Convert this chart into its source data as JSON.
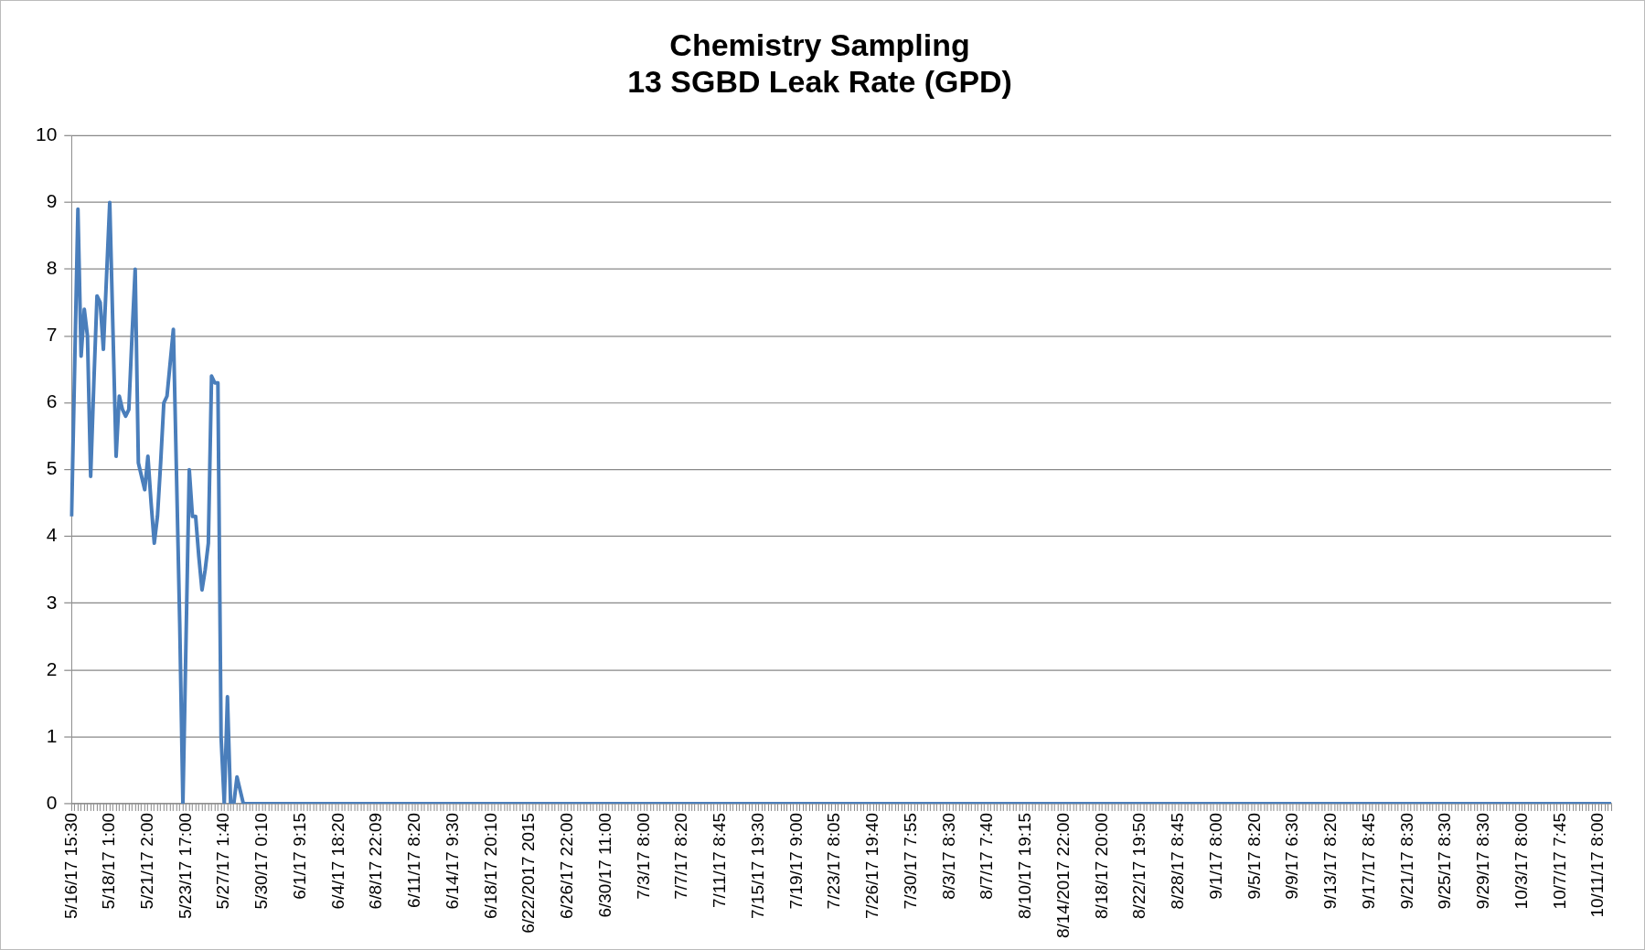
{
  "chart_data": {
    "type": "line",
    "title": "Chemistry Sampling\n13 SGBD Leak Rate (GPD)",
    "categories": [
      "5/16/17 15:30",
      null,
      null,
      null,
      null,
      null,
      null,
      null,
      null,
      null,
      null,
      null,
      "5/18/17 1:00",
      null,
      null,
      null,
      null,
      null,
      null,
      null,
      null,
      null,
      null,
      null,
      "5/21/17 2:00",
      null,
      null,
      null,
      null,
      null,
      null,
      null,
      null,
      null,
      null,
      null,
      "5/23/17 17:00",
      null,
      null,
      null,
      null,
      null,
      null,
      null,
      null,
      null,
      null,
      null,
      "5/27/17 1:40",
      null,
      null,
      null,
      null,
      null,
      null,
      null,
      null,
      null,
      null,
      null,
      "5/30/17 0:10",
      null,
      null,
      null,
      null,
      null,
      null,
      null,
      null,
      null,
      null,
      null,
      "6/1/17 9:15",
      null,
      null,
      null,
      null,
      null,
      null,
      null,
      null,
      null,
      null,
      null,
      "6/4/17 18:20",
      null,
      null,
      null,
      null,
      null,
      null,
      null,
      null,
      null,
      null,
      null,
      "6/8/17 22:09",
      null,
      null,
      null,
      null,
      null,
      null,
      null,
      null,
      null,
      null,
      null,
      "6/11/17 8:20",
      null,
      null,
      null,
      null,
      null,
      null,
      null,
      null,
      null,
      null,
      null,
      "6/14/17 9:30",
      null,
      null,
      null,
      null,
      null,
      null,
      null,
      null,
      null,
      null,
      null,
      "6/18/17 20:10",
      null,
      null,
      null,
      null,
      null,
      null,
      null,
      null,
      null,
      null,
      null,
      "6/22/2017 2015",
      null,
      null,
      null,
      null,
      null,
      null,
      null,
      null,
      null,
      null,
      null,
      "6/26/17 22:00",
      null,
      null,
      null,
      null,
      null,
      null,
      null,
      null,
      null,
      null,
      null,
      "6/30/17 11:00",
      null,
      null,
      null,
      null,
      null,
      null,
      null,
      null,
      null,
      null,
      null,
      "7/3/17 8:00",
      null,
      null,
      null,
      null,
      null,
      null,
      null,
      null,
      null,
      null,
      null,
      "7/7/17 8:20",
      null,
      null,
      null,
      null,
      null,
      null,
      null,
      null,
      null,
      null,
      null,
      "7/11/17 8:45",
      null,
      null,
      null,
      null,
      null,
      null,
      null,
      null,
      null,
      null,
      null,
      "7/15/17 19:30",
      null,
      null,
      null,
      null,
      null,
      null,
      null,
      null,
      null,
      null,
      null,
      "7/19/17 9:00",
      null,
      null,
      null,
      null,
      null,
      null,
      null,
      null,
      null,
      null,
      null,
      "7/23/17 8:05",
      null,
      null,
      null,
      null,
      null,
      null,
      null,
      null,
      null,
      null,
      null,
      "7/26/17 19:40",
      null,
      null,
      null,
      null,
      null,
      null,
      null,
      null,
      null,
      null,
      null,
      "7/30/17 7:55",
      null,
      null,
      null,
      null,
      null,
      null,
      null,
      null,
      null,
      null,
      null,
      "8/3/17 8:30",
      null,
      null,
      null,
      null,
      null,
      null,
      null,
      null,
      null,
      null,
      null,
      "8/7/17 7:40",
      null,
      null,
      null,
      null,
      null,
      null,
      null,
      null,
      null,
      null,
      null,
      "8/10/17 19:15",
      null,
      null,
      null,
      null,
      null,
      null,
      null,
      null,
      null,
      null,
      null,
      "8/14/2017 22:00",
      null,
      null,
      null,
      null,
      null,
      null,
      null,
      null,
      null,
      null,
      null,
      "8/18/17 20:00",
      null,
      null,
      null,
      null,
      null,
      null,
      null,
      null,
      null,
      null,
      null,
      "8/22/17 19:50",
      null,
      null,
      null,
      null,
      null,
      null,
      null,
      null,
      null,
      null,
      null,
      "8/28/17 8:45",
      null,
      null,
      null,
      null,
      null,
      null,
      null,
      null,
      null,
      null,
      null,
      "9/1/17 8:00",
      null,
      null,
      null,
      null,
      null,
      null,
      null,
      null,
      null,
      null,
      null,
      "9/5/17 8:20",
      null,
      null,
      null,
      null,
      null,
      null,
      null,
      null,
      null,
      null,
      null,
      "9/9/17 6:30",
      null,
      null,
      null,
      null,
      null,
      null,
      null,
      null,
      null,
      null,
      null,
      "9/13/17 8:20",
      null,
      null,
      null,
      null,
      null,
      null,
      null,
      null,
      null,
      null,
      null,
      "9/17/17 8:45",
      null,
      null,
      null,
      null,
      null,
      null,
      null,
      null,
      null,
      null,
      null,
      "9/21/17 8:30",
      null,
      null,
      null,
      null,
      null,
      null,
      null,
      null,
      null,
      null,
      null,
      "9/25/17 8:30",
      null,
      null,
      null,
      null,
      null,
      null,
      null,
      null,
      null,
      null,
      null,
      "9/29/17 8:30",
      null,
      null,
      null,
      null,
      null,
      null,
      null,
      null,
      null,
      null,
      null,
      "10/3/17 8:00",
      null,
      null,
      null,
      null,
      null,
      null,
      null,
      null,
      null,
      null,
      null,
      "10/7/17 7:45",
      null,
      null,
      null,
      null,
      null,
      null,
      null,
      null,
      null,
      null,
      null,
      "10/11/17 8:00",
      null,
      null,
      null,
      null
    ],
    "series": [
      {
        "color": "#4a7ebb",
        "values": [
          4.3,
          6.6,
          8.9,
          6.7,
          7.4,
          7.0,
          4.9,
          6.3,
          7.6,
          7.5,
          6.8,
          7.9,
          9.0,
          7.1,
          5.2,
          6.1,
          5.9,
          5.8,
          5.9,
          7.0,
          8.0,
          5.1,
          4.9,
          4.7,
          5.2,
          4.5,
          3.9,
          4.3,
          5.1,
          6.0,
          6.1,
          6.6,
          7.1,
          4.9,
          2.7,
          0,
          2.5,
          5.0,
          4.3,
          4.3,
          3.7,
          3.2,
          3.5,
          3.9,
          6.4,
          6.3,
          6.3,
          1.0,
          0,
          1.6,
          0,
          0,
          0.4,
          0.2,
          0,
          0,
          0,
          0,
          0,
          0,
          0,
          0,
          0,
          0,
          0,
          0,
          0,
          0,
          0,
          0,
          0,
          0,
          0,
          0,
          0,
          0,
          0,
          0,
          0,
          0,
          0,
          0,
          0,
          0,
          0,
          0,
          0,
          0,
          0,
          0,
          0,
          0,
          0,
          0,
          0,
          0,
          0,
          0,
          0,
          0,
          0,
          0,
          0,
          0,
          0,
          0,
          0,
          0,
          0,
          0,
          0,
          0,
          0,
          0,
          0,
          0,
          0,
          0,
          0,
          0,
          0,
          0,
          0,
          0,
          0,
          0,
          0,
          0,
          0,
          0,
          0,
          0,
          0,
          0,
          0,
          0,
          0,
          0,
          0,
          0,
          0,
          0,
          0,
          0,
          0,
          0,
          0,
          0,
          0,
          0,
          0,
          0,
          0,
          0,
          0,
          0,
          0,
          0,
          0,
          0,
          0,
          0,
          0,
          0,
          0,
          0,
          0,
          0,
          0,
          0,
          0,
          0,
          0,
          0,
          0,
          0,
          0,
          0,
          0,
          0,
          0,
          0,
          0,
          0,
          0,
          0,
          0,
          0,
          0,
          0,
          0,
          0,
          0,
          0,
          0,
          0,
          0,
          0,
          0,
          0,
          0,
          0,
          0,
          0,
          0,
          0,
          0,
          0,
          0,
          0,
          0,
          0,
          0,
          0,
          0,
          0,
          0,
          0,
          0,
          0,
          0,
          0,
          0,
          0,
          0,
          0,
          0,
          0,
          0,
          0,
          0,
          0,
          0,
          0,
          0,
          0,
          0,
          0,
          0,
          0,
          0,
          0,
          0,
          0,
          0,
          0,
          0,
          0,
          0,
          0,
          0,
          0,
          0,
          0,
          0,
          0,
          0,
          0,
          0,
          0,
          0,
          0,
          0,
          0,
          0,
          0,
          0,
          0,
          0,
          0,
          0,
          0,
          0,
          0,
          0,
          0,
          0,
          0,
          0,
          0,
          0,
          0,
          0,
          0,
          0,
          0,
          0,
          0,
          0,
          0,
          0,
          0,
          0,
          0,
          0,
          0,
          0,
          0,
          0,
          0,
          0,
          0,
          0,
          0,
          0,
          0,
          0,
          0,
          0,
          0,
          0,
          0,
          0,
          0,
          0,
          0,
          0,
          0,
          0,
          0,
          0,
          0,
          0,
          0,
          0,
          0,
          0,
          0,
          0,
          0,
          0,
          0,
          0,
          0,
          0,
          0,
          0,
          0,
          0,
          0,
          0,
          0,
          0,
          0,
          0,
          0,
          0,
          0,
          0,
          0,
          0,
          0,
          0,
          0,
          0,
          0,
          0,
          0,
          0,
          0,
          0,
          0,
          0,
          0,
          0,
          0,
          0,
          0,
          0,
          0,
          0,
          0,
          0,
          0,
          0,
          0,
          0,
          0,
          0,
          0,
          0,
          0,
          0,
          0,
          0,
          0,
          0,
          0,
          0,
          0,
          0,
          0,
          0,
          0,
          0,
          0,
          0,
          0,
          0,
          0,
          0,
          0,
          0,
          0,
          0,
          0,
          0,
          0,
          0,
          0,
          0,
          0,
          0,
          0,
          0,
          0,
          0,
          0,
          0,
          0,
          0,
          0,
          0,
          0,
          0,
          0,
          0,
          0,
          0,
          0,
          0,
          0,
          0,
          0,
          0,
          0,
          0,
          0,
          0,
          0,
          0,
          0,
          0,
          0,
          0,
          0,
          0,
          0,
          0,
          0,
          0,
          0,
          0,
          0,
          0,
          0,
          0,
          0,
          0,
          0,
          0,
          0,
          0,
          0,
          0,
          0,
          0,
          0,
          0,
          0,
          0,
          0,
          0,
          0,
          0,
          0,
          0,
          0,
          0,
          0,
          0,
          0,
          0,
          0,
          0
        ]
      }
    ],
    "ylim": [
      0,
      10
    ],
    "yticks": [
      0,
      1,
      2,
      3,
      4,
      5,
      6,
      7,
      8,
      9,
      10
    ],
    "grid": "y",
    "legend": false,
    "marker": "none",
    "line_style": "solid"
  }
}
